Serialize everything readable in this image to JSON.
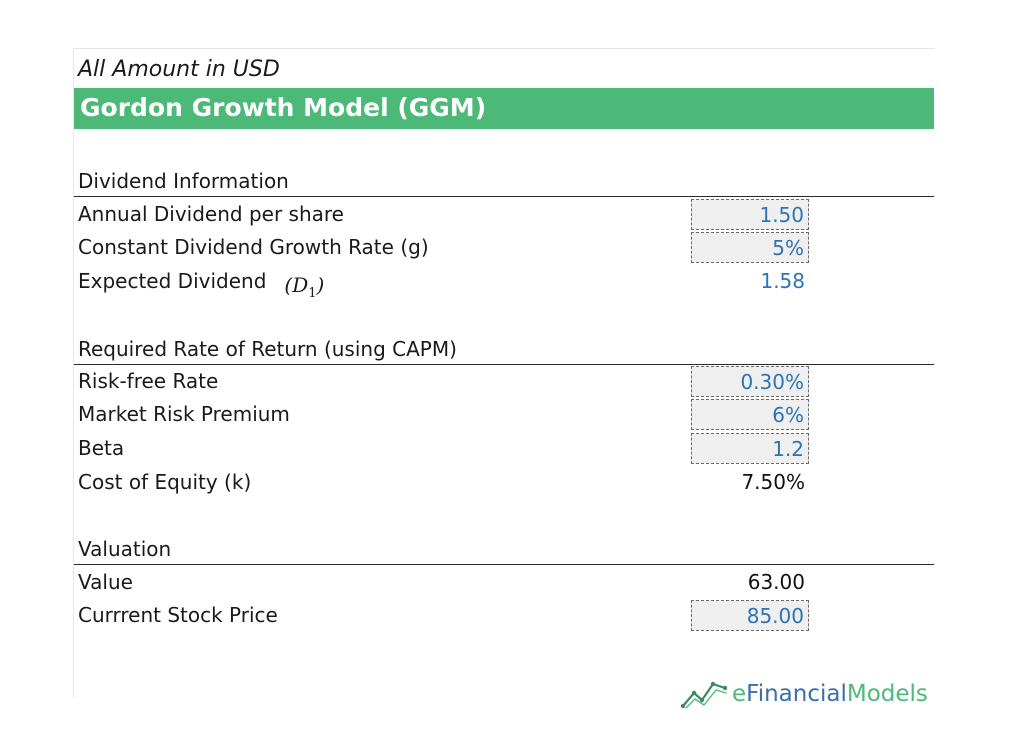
{
  "note": "All Amount in USD",
  "title": "Gordon Growth Model (GGM)",
  "sections": {
    "dividend": {
      "heading": "Dividend Information",
      "rows": [
        {
          "label": "Annual Dividend per share",
          "value": "1.50",
          "kind": "input"
        },
        {
          "label": "Constant Dividend Growth Rate (g)",
          "value": "5%",
          "kind": "input"
        },
        {
          "label": "Expected Dividend",
          "symbol": "D",
          "symbol_sub": "1",
          "value": "1.58",
          "kind": "calc"
        }
      ]
    },
    "required_return": {
      "heading": "Required Rate of Return  (using CAPM)",
      "rows": [
        {
          "label": "Risk-free Rate",
          "value": "0.30%",
          "kind": "input"
        },
        {
          "label": "Market Risk Premium",
          "value": "6%",
          "kind": "input"
        },
        {
          "label": "Beta",
          "value": "1.2",
          "kind": "input"
        },
        {
          "label": "Cost of Equity (k)",
          "value": "7.50%",
          "kind": "result"
        }
      ]
    },
    "valuation": {
      "heading": "Valuation",
      "rows": [
        {
          "label": "Value",
          "value": "63.00",
          "kind": "result"
        },
        {
          "label": "Currrent Stock Price",
          "value": "85.00",
          "kind": "input"
        }
      ]
    }
  },
  "brand": {
    "prefix": "e",
    "part1": "Financial",
    "part2": "Models",
    "icon": "trend-line-logo-icon"
  },
  "colors": {
    "header_green": "#4cb978",
    "input_blue": "#2e74b5",
    "input_fill": "#efefef",
    "brand_blue": "#3a6fa8"
  }
}
